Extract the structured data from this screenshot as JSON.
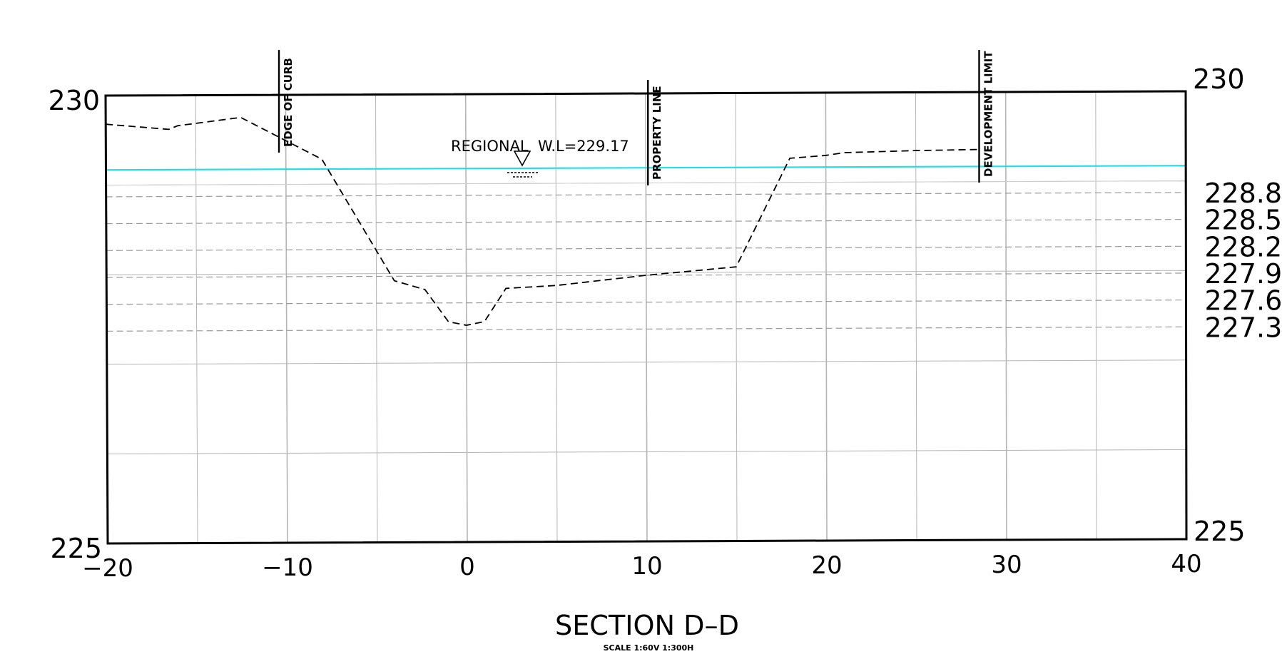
{
  "title": "SECTION D–D",
  "scale_note": "SCALE 1:60V 1:300H",
  "water_level_label": "REGIONAL  W.L=229.17",
  "markers": [
    {
      "label": "EDGE OF CURB",
      "offset": -10.3
    },
    {
      "label": "PROPERTY LINE",
      "offset": 10.2
    },
    {
      "label": "DEVELOPMENT LIMIT",
      "offset": 28.6
    }
  ],
  "right_level_labels": [
    "228.87",
    "228.57",
    "228.27",
    "227.97",
    "227.67",
    "227.37"
  ],
  "colors": {
    "water_line": "#22dde6",
    "grid_major": "#b5b5b5",
    "grid_dashed": "#9a9a9a",
    "border": "#000000",
    "ground": "#000000"
  },
  "chart_data": {
    "type": "line",
    "title": "SECTION D–D",
    "xlabel": "",
    "ylabel": "",
    "xlim": [
      -20,
      40
    ],
    "ylim": [
      225,
      230
    ],
    "x_ticks": [
      -20,
      -10,
      0,
      10,
      20,
      30,
      40
    ],
    "x_tick_labels": [
      "−20",
      "−10",
      "0",
      "10",
      "20",
      "30",
      "40"
    ],
    "y_tick_labels_left": [
      "230",
      "225"
    ],
    "y_tick_labels_right": [
      "230",
      "225"
    ],
    "y_ticks": [
      230,
      225
    ],
    "grid": true,
    "water_level": 229.17,
    "dashed_levels": [
      228.87,
      228.57,
      228.27,
      227.97,
      227.67,
      227.37
    ],
    "series": [
      {
        "style": "dashed",
        "x": [
          -20,
          -16.5,
          -16,
          -12.5,
          -8,
          -4,
          -2.3,
          -1,
          0,
          1,
          2.2,
          5,
          10,
          15,
          18,
          20,
          21,
          25,
          28.6
        ],
        "y": [
          229.68,
          229.62,
          229.66,
          229.75,
          229.28,
          227.92,
          227.82,
          227.46,
          227.42,
          227.46,
          227.83,
          227.86,
          227.97,
          228.06,
          229.27,
          229.3,
          229.33,
          229.35,
          229.36
        ]
      }
    ]
  }
}
